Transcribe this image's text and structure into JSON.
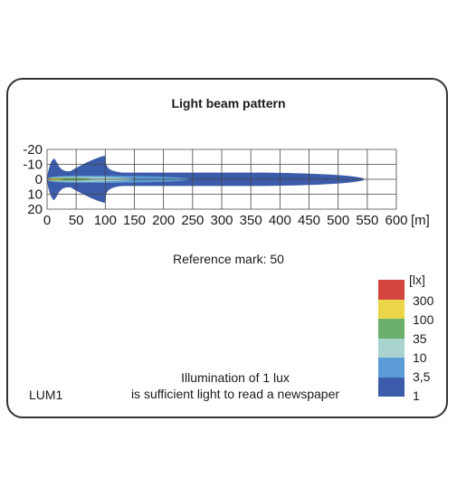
{
  "title": "Light beam pattern",
  "reference_mark": "Reference mark: 50",
  "note": {
    "line1": "Illumination of 1 lux",
    "line2": "is sufficient light to read a newspaper"
  },
  "model": "LUM1",
  "chart_data": {
    "type": "heatmap",
    "title": "Light beam pattern",
    "x_unit": "[m]",
    "xlim": [
      0,
      600
    ],
    "ylim": [
      -20,
      20
    ],
    "x_ticks": [
      0,
      50,
      100,
      150,
      200,
      250,
      300,
      350,
      400,
      450,
      500,
      550,
      600
    ],
    "y_ticks": [
      -20,
      -10,
      0,
      10,
      20
    ],
    "grid": true,
    "contours": [
      {
        "lux": 1,
        "color": "#3b5bab",
        "reach": 545,
        "half_width": 4.5,
        "wing_reach": 100,
        "wing_width": 9
      },
      {
        "lux": 3.5,
        "color": "#5b9bd5",
        "reach": 245,
        "half_width": 2.4
      },
      {
        "lux": 10,
        "color": "#a8d3cf",
        "reach": 148,
        "half_width": 1.6
      },
      {
        "lux": 35,
        "color": "#6bb16b",
        "reach": 78,
        "half_width": 1.0
      },
      {
        "lux": 100,
        "color": "#ebd64a",
        "reach": 30,
        "half_width": 0.6
      },
      {
        "lux": 300,
        "color": "#d4453f",
        "reach": 10,
        "half_width": 0.4
      }
    ],
    "legend": {
      "unit": "[lx]",
      "levels": [
        "300",
        "100",
        "35",
        "10",
        "3,5",
        "1"
      ],
      "colors": [
        "#d4453f",
        "#ebd64a",
        "#6bb16b",
        "#a8d3cf",
        "#5b9bd5",
        "#3b5bab"
      ]
    }
  }
}
